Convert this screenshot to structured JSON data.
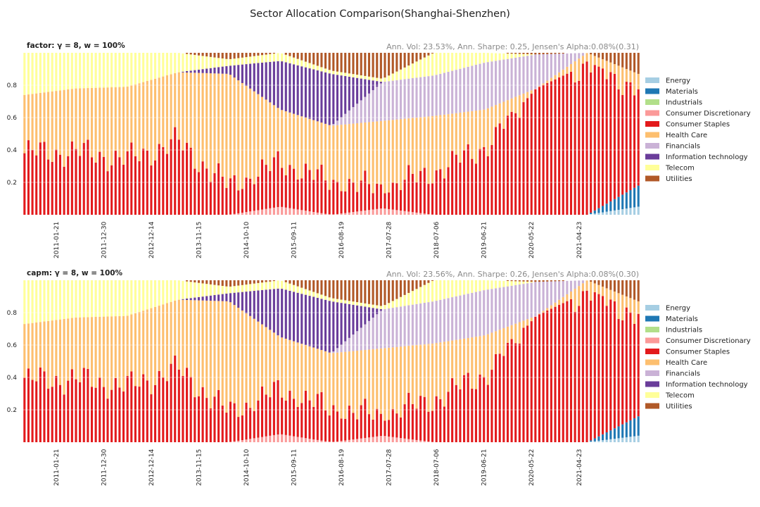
{
  "figure": {
    "title": "Sector Allocation Comparison(Shanghai-Shenzhen)"
  },
  "chart_data": [
    {
      "type": "bar",
      "stacked": true,
      "title": "factor: γ = 8, w = 100%",
      "annotation": "Ann. Vol: 23.53%, Ann. Sharpe: 0.25, Jensen's Alpha:0.08%(0.31)",
      "xlabel": "",
      "ylabel": "",
      "ylim": [
        0,
        1
      ],
      "yticks": [
        "0.2",
        "0.4",
        "0.6",
        "0.8"
      ],
      "xticks": [
        "2011-01-21",
        "2011-12-30",
        "2012-12-14",
        "2013-11-15",
        "2014-10-10",
        "2015-09-11",
        "2016-08-19",
        "2017-07-28",
        "2018-07-06",
        "2019-06-21",
        "2020-05-22",
        "2021-04-23"
      ],
      "legend_position": "right",
      "series": [
        {
          "name": "Energy",
          "key": "energy",
          "color": "#a6cee3"
        },
        {
          "name": "Materials",
          "key": "materials",
          "color": "#1f78b4"
        },
        {
          "name": "Industrials",
          "key": "industrials",
          "color": "#b2df8a"
        },
        {
          "name": "Consumer Discretionary",
          "key": "consdisc",
          "color": "#fb9a99"
        },
        {
          "name": "Consumer Staples",
          "key": "staples",
          "color": "#e31a1c"
        },
        {
          "name": "Health Care",
          "key": "health",
          "color": "#fdbf6f"
        },
        {
          "name": "Financials",
          "key": "financials",
          "color": "#cab2d6"
        },
        {
          "name": "Information technology",
          "key": "infotech",
          "color": "#6a3d9a"
        },
        {
          "name": "Telecom",
          "key": "telecom",
          "color": "#ffff99"
        },
        {
          "name": "Utilities",
          "key": "utilities",
          "color": "#b15928"
        }
      ],
      "period_values": [
        {
          "period": 1,
          "energy": 0,
          "materials": 0,
          "industrials": 0,
          "consdisc": 0,
          "staples": 0.38,
          "health": 0.36,
          "financials": 0,
          "infotech": 0,
          "telecom": 0.26,
          "utilities": 0
        },
        {
          "period": 2,
          "energy": 0,
          "materials": 0,
          "industrials": 0,
          "consdisc": 0,
          "staples": 0.39,
          "health": 0.39,
          "financials": 0,
          "infotech": 0,
          "telecom": 0.22,
          "utilities": 0
        },
        {
          "period": 3,
          "energy": 0,
          "materials": 0,
          "industrials": 0,
          "consdisc": 0,
          "staples": 0.34,
          "health": 0.45,
          "financials": 0,
          "infotech": 0,
          "telecom": 0.21,
          "utilities": 0
        },
        {
          "period": 4,
          "energy": 0,
          "materials": 0,
          "industrials": 0,
          "consdisc": 0,
          "staples": 0.45,
          "health": 0.43,
          "financials": 0,
          "infotech": 0,
          "telecom": 0.12,
          "utilities": 0
        },
        {
          "period": 5,
          "energy": 0,
          "materials": 0,
          "industrials": 0,
          "consdisc": 0,
          "staples": 0.17,
          "health": 0.7,
          "financials": 0,
          "infotech": 0.05,
          "telecom": 0.04,
          "utilities": 0.04
        },
        {
          "period": 6,
          "energy": 0,
          "materials": 0,
          "industrials": 0,
          "consdisc": 0.05,
          "staples": 0.27,
          "health": 0.33,
          "financials": 0,
          "infotech": 0.3,
          "telecom": 0.05,
          "utilities": 0
        },
        {
          "period": 7,
          "energy": 0,
          "materials": 0,
          "industrials": 0,
          "consdisc": 0,
          "staples": 0.2,
          "health": 0.35,
          "financials": 0,
          "infotech": 0.32,
          "telecom": 0.02,
          "utilities": 0.11
        },
        {
          "period": 8,
          "energy": 0,
          "materials": 0,
          "industrials": 0,
          "consdisc": 0.04,
          "staples": 0.12,
          "health": 0.42,
          "financials": 0.24,
          "infotech": 0,
          "telecom": 0.02,
          "utilities": 0.16
        },
        {
          "period": 9,
          "energy": 0,
          "materials": 0,
          "industrials": 0,
          "consdisc": 0,
          "staples": 0.26,
          "health": 0.35,
          "financials": 0.25,
          "infotech": 0,
          "telecom": 0.14,
          "utilities": 0
        },
        {
          "period": 10,
          "energy": 0,
          "materials": 0,
          "industrials": 0,
          "consdisc": 0,
          "staples": 0.42,
          "health": 0.23,
          "financials": 0.29,
          "infotech": 0,
          "telecom": 0.06,
          "utilities": 0
        },
        {
          "period": 11,
          "energy": 0,
          "materials": 0,
          "industrials": 0,
          "consdisc": 0,
          "staples": 0.78,
          "health": 0,
          "financials": 0.21,
          "infotech": 0,
          "telecom": 0,
          "utilities": 0.01
        },
        {
          "period": 12,
          "energy": 0,
          "materials": 0,
          "industrials": 0,
          "consdisc": 0,
          "staples": 0.93,
          "health": 0.07,
          "financials": 0,
          "infotech": 0,
          "telecom": 0,
          "utilities": 0
        },
        {
          "period": 13,
          "energy": 0.05,
          "materials": 0.13,
          "industrials": 0,
          "consdisc": 0,
          "staples": 0.6,
          "health": 0.09,
          "financials": 0,
          "infotech": 0,
          "telecom": 0,
          "utilities": 0.13
        }
      ]
    },
    {
      "type": "bar",
      "stacked": true,
      "title": "capm: γ = 8, w = 100%",
      "annotation": "Ann. Vol: 23.56%, Ann. Sharpe: 0.26, Jensen's Alpha:0.08%(0.30)",
      "xlabel": "",
      "ylabel": "",
      "ylim": [
        0,
        1
      ],
      "yticks": [
        "0.2",
        "0.4",
        "0.6",
        "0.8"
      ],
      "xticks": [
        "2011-01-21",
        "2011-12-30",
        "2012-12-14",
        "2013-11-15",
        "2014-10-10",
        "2015-09-11",
        "2016-08-19",
        "2017-07-28",
        "2018-07-06",
        "2019-06-21",
        "2020-05-22",
        "2021-04-23"
      ],
      "legend_position": "right",
      "series": [
        {
          "name": "Energy",
          "key": "energy",
          "color": "#a6cee3"
        },
        {
          "name": "Materials",
          "key": "materials",
          "color": "#1f78b4"
        },
        {
          "name": "Industrials",
          "key": "industrials",
          "color": "#b2df8a"
        },
        {
          "name": "Consumer Discretionary",
          "key": "consdisc",
          "color": "#fb9a99"
        },
        {
          "name": "Consumer Staples",
          "key": "staples",
          "color": "#e31a1c"
        },
        {
          "name": "Health Care",
          "key": "health",
          "color": "#fdbf6f"
        },
        {
          "name": "Financials",
          "key": "financials",
          "color": "#cab2d6"
        },
        {
          "name": "Information technology",
          "key": "infotech",
          "color": "#6a3d9a"
        },
        {
          "name": "Telecom",
          "key": "telecom",
          "color": "#ffff99"
        },
        {
          "name": "Utilities",
          "key": "utilities",
          "color": "#b15928"
        }
      ],
      "period_values": [
        {
          "period": 1,
          "energy": 0,
          "materials": 0,
          "industrials": 0,
          "consdisc": 0,
          "staples": 0.38,
          "health": 0.35,
          "financials": 0,
          "infotech": 0,
          "telecom": 0.27,
          "utilities": 0
        },
        {
          "period": 2,
          "energy": 0,
          "materials": 0,
          "industrials": 0,
          "consdisc": 0,
          "staples": 0.39,
          "health": 0.38,
          "financials": 0,
          "infotech": 0,
          "telecom": 0.23,
          "utilities": 0
        },
        {
          "period": 3,
          "energy": 0,
          "materials": 0,
          "industrials": 0,
          "consdisc": 0,
          "staples": 0.34,
          "health": 0.44,
          "financials": 0,
          "infotech": 0,
          "telecom": 0.22,
          "utilities": 0
        },
        {
          "period": 4,
          "energy": 0,
          "materials": 0,
          "industrials": 0,
          "consdisc": 0,
          "staples": 0.45,
          "health": 0.43,
          "financials": 0,
          "infotech": 0,
          "telecom": 0.12,
          "utilities": 0
        },
        {
          "period": 5,
          "energy": 0,
          "materials": 0,
          "industrials": 0,
          "consdisc": 0,
          "staples": 0.18,
          "health": 0.69,
          "financials": 0,
          "infotech": 0.05,
          "telecom": 0.04,
          "utilities": 0.04
        },
        {
          "period": 6,
          "energy": 0,
          "materials": 0,
          "industrials": 0,
          "consdisc": 0.05,
          "staples": 0.27,
          "health": 0.33,
          "financials": 0,
          "infotech": 0.3,
          "telecom": 0.05,
          "utilities": 0
        },
        {
          "period": 7,
          "energy": 0,
          "materials": 0,
          "industrials": 0,
          "consdisc": 0,
          "staples": 0.2,
          "health": 0.35,
          "financials": 0,
          "infotech": 0.32,
          "telecom": 0.02,
          "utilities": 0.11
        },
        {
          "period": 8,
          "energy": 0,
          "materials": 0,
          "industrials": 0,
          "consdisc": 0.04,
          "staples": 0.12,
          "health": 0.42,
          "financials": 0.24,
          "infotech": 0,
          "telecom": 0.02,
          "utilities": 0.16
        },
        {
          "period": 9,
          "energy": 0,
          "materials": 0,
          "industrials": 0,
          "consdisc": 0,
          "staples": 0.26,
          "health": 0.35,
          "financials": 0.26,
          "infotech": 0,
          "telecom": 0.13,
          "utilities": 0
        },
        {
          "period": 10,
          "energy": 0,
          "materials": 0,
          "industrials": 0,
          "consdisc": 0,
          "staples": 0.42,
          "health": 0.24,
          "financials": 0.28,
          "infotech": 0,
          "telecom": 0.06,
          "utilities": 0
        },
        {
          "period": 11,
          "energy": 0,
          "materials": 0,
          "industrials": 0,
          "consdisc": 0,
          "staples": 0.78,
          "health": 0,
          "financials": 0.21,
          "infotech": 0,
          "telecom": 0,
          "utilities": 0.01
        },
        {
          "period": 12,
          "energy": 0,
          "materials": 0,
          "industrials": 0,
          "consdisc": 0,
          "staples": 0.93,
          "health": 0.07,
          "financials": 0,
          "infotech": 0,
          "telecom": 0,
          "utilities": 0
        },
        {
          "period": 13,
          "energy": 0.04,
          "materials": 0.12,
          "industrials": 0,
          "consdisc": 0,
          "staples": 0.62,
          "health": 0.09,
          "financials": 0,
          "infotech": 0,
          "telecom": 0,
          "utilities": 0.13
        }
      ]
    }
  ]
}
